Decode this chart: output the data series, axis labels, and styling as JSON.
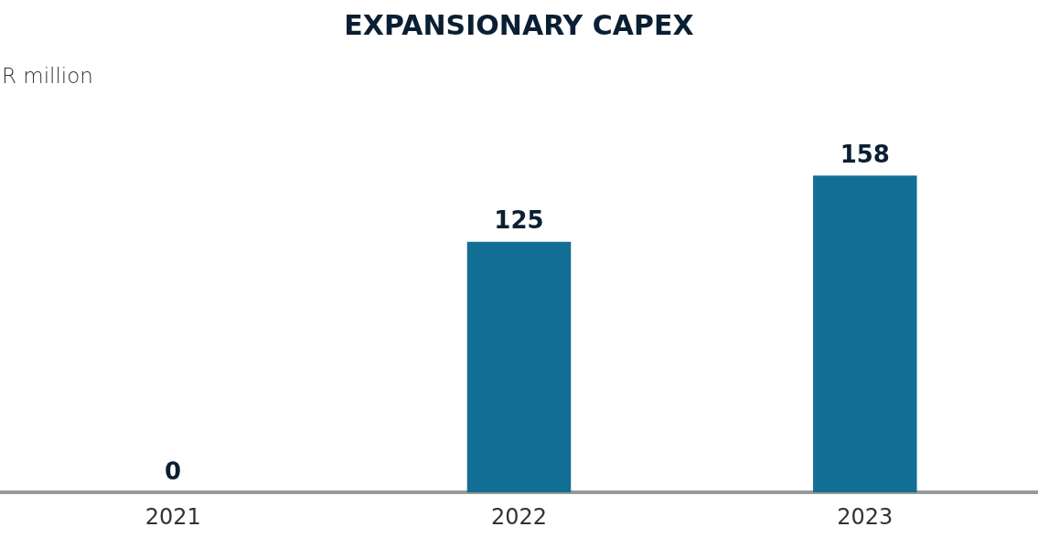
{
  "chart_data": {
    "type": "bar",
    "title": "EXPANSIONARY CAPEX",
    "ylabel": "R million",
    "categories": [
      "2021",
      "2022",
      "2023"
    ],
    "values": [
      0,
      125,
      158
    ],
    "color": "#136e95",
    "data_labels": true,
    "grid": false,
    "legend": false
  }
}
